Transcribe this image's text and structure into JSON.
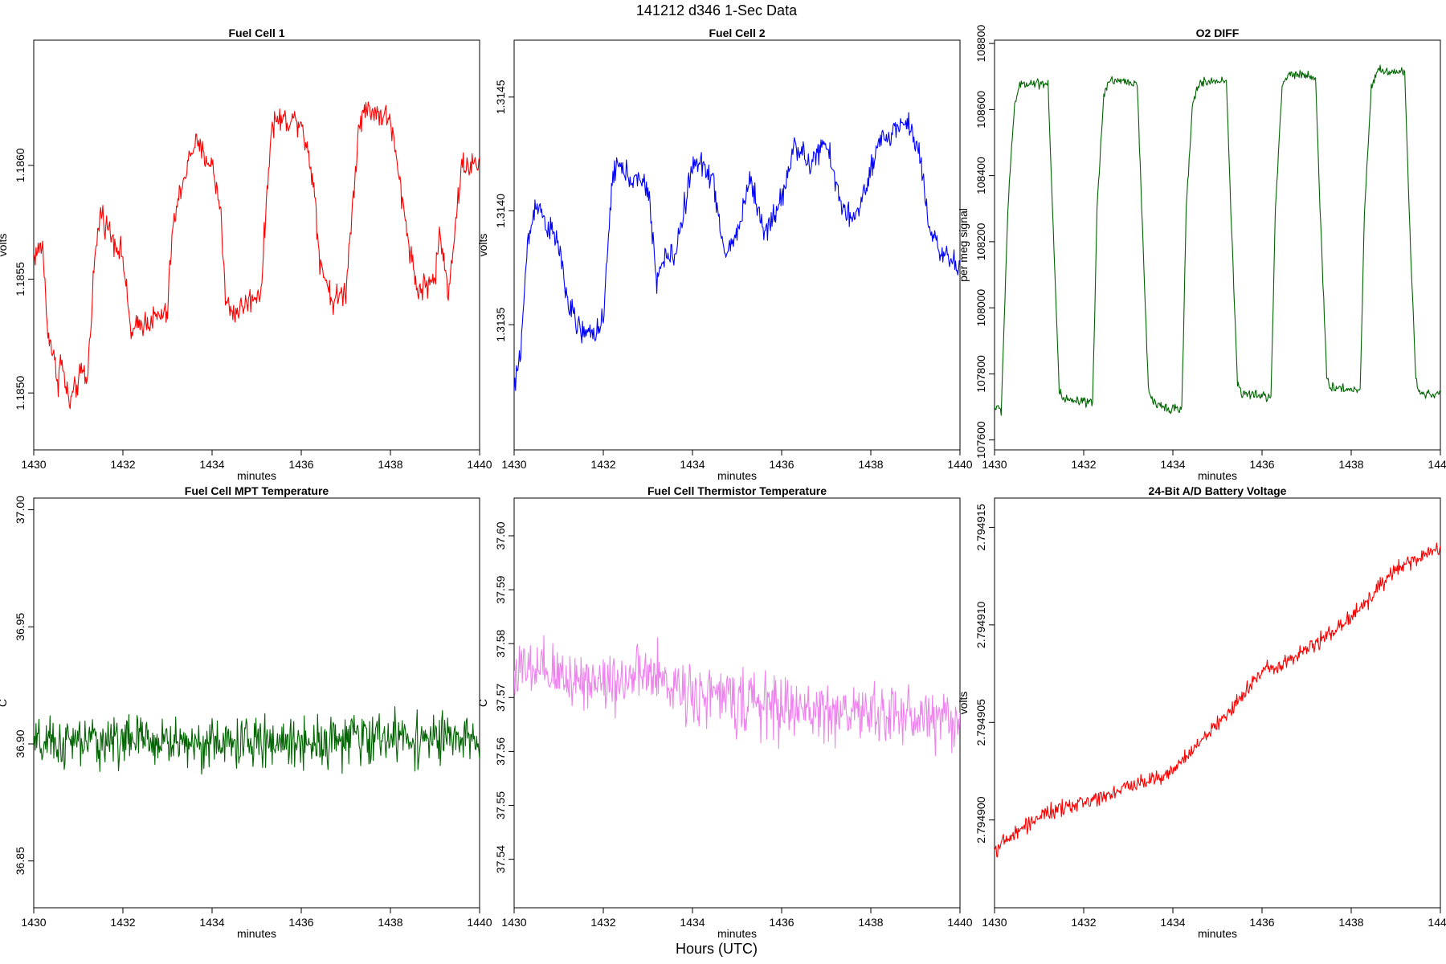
{
  "page": {
    "title": "141212   d346   1-Sec Data",
    "x_main_label": "Hours (UTC)"
  },
  "chart_data": [
    {
      "type": "line",
      "title": "Fuel Cell 1",
      "xlabel": "minutes",
      "ylabel": "volts",
      "xlim": [
        1430,
        1440
      ],
      "ylim": [
        1.18475,
        1.18655
      ],
      "xticks": [
        1430,
        1432,
        1434,
        1436,
        1438,
        1440
      ],
      "xtick_labels": [
        "1430",
        "1432",
        "1434",
        "1436",
        "1438",
        "1440"
      ],
      "yticks": [
        1.185,
        1.1855,
        1.186
      ],
      "ytick_labels": [
        "1.1850",
        "1.1855",
        "1.1860"
      ],
      "color": "#ff0000",
      "noise": 8.5e-05,
      "x": [
        1430.0,
        1430.2,
        1430.3,
        1430.55,
        1430.6,
        1430.8,
        1431.1,
        1431.2,
        1431.35,
        1431.5,
        1431.6,
        1432.0,
        1432.1,
        1432.2,
        1432.35,
        1433.0,
        1433.1,
        1433.3,
        1433.6,
        1434.0,
        1434.2,
        1434.3,
        1434.5,
        1435.1,
        1435.3,
        1435.4,
        1436.0,
        1436.3,
        1436.4,
        1436.7,
        1437.0,
        1437.3,
        1437.5,
        1438.0,
        1438.3,
        1438.6,
        1439.0,
        1439.1,
        1439.3,
        1439.6,
        1440.0
      ],
      "y": [
        1.1856,
        1.18565,
        1.1853,
        1.18505,
        1.18515,
        1.18495,
        1.1851,
        1.18505,
        1.18555,
        1.1858,
        1.18575,
        1.1856,
        1.1854,
        1.18525,
        1.1853,
        1.18535,
        1.1857,
        1.1859,
        1.1861,
        1.186,
        1.1858,
        1.1854,
        1.18535,
        1.18545,
        1.1861,
        1.1862,
        1.1862,
        1.1859,
        1.1856,
        1.1854,
        1.18545,
        1.1862,
        1.18625,
        1.1862,
        1.1858,
        1.18545,
        1.1855,
        1.1857,
        1.18545,
        1.186,
        1.186
      ]
    },
    {
      "type": "line",
      "title": "Fuel Cell 2",
      "xlabel": "minutes",
      "ylabel": "volts",
      "xlim": [
        1430,
        1440
      ],
      "ylim": [
        1.31295,
        1.31475
      ],
      "xticks": [
        1430,
        1432,
        1434,
        1436,
        1438,
        1440
      ],
      "xtick_labels": [
        "1430",
        "1432",
        "1434",
        "1436",
        "1438",
        "1440"
      ],
      "yticks": [
        1.3135,
        1.314,
        1.3145
      ],
      "ytick_labels": [
        "1.3135",
        "1.3140",
        "1.3145"
      ],
      "color": "#0000ff",
      "noise": 8.5e-05,
      "x": [
        1430.0,
        1430.15,
        1430.3,
        1430.5,
        1430.7,
        1431.0,
        1431.2,
        1431.4,
        1431.6,
        1432.0,
        1432.2,
        1432.3,
        1432.6,
        1433.0,
        1433.2,
        1433.4,
        1433.6,
        1434.0,
        1434.3,
        1434.5,
        1434.7,
        1435.0,
        1435.3,
        1435.6,
        1436.0,
        1436.3,
        1436.6,
        1437.0,
        1437.3,
        1437.6,
        1437.9,
        1438.2,
        1438.5,
        1438.8,
        1439.1,
        1439.3,
        1439.6,
        1440.0
      ],
      "y": [
        1.3132,
        1.3134,
        1.31385,
        1.31405,
        1.31395,
        1.31385,
        1.3136,
        1.3135,
        1.31345,
        1.3135,
        1.31415,
        1.3142,
        1.31415,
        1.3141,
        1.3137,
        1.3138,
        1.3138,
        1.3142,
        1.3142,
        1.3141,
        1.3138,
        1.3139,
        1.31415,
        1.3139,
        1.31405,
        1.3143,
        1.3142,
        1.3143,
        1.31405,
        1.31395,
        1.3141,
        1.3143,
        1.31435,
        1.3144,
        1.31425,
        1.31395,
        1.3138,
        1.31375
      ]
    },
    {
      "type": "line",
      "title": "O2 DIFF",
      "xlabel": "minutes",
      "ylabel": "per meg signal",
      "xlim": [
        1430,
        1440
      ],
      "ylim": [
        107570,
        108810
      ],
      "xticks": [
        1430,
        1432,
        1434,
        1436,
        1438,
        1440
      ],
      "xtick_labels": [
        "1430",
        "1432",
        "1434",
        "1436",
        "1438",
        "1440"
      ],
      "yticks": [
        107600,
        107800,
        108000,
        108200,
        108400,
        108600,
        108800
      ],
      "ytick_labels": [
        "107600",
        "107800",
        "108000",
        "108200",
        "108400",
        "108600",
        "108800"
      ],
      "color": "#006400",
      "noise": 22,
      "x": [
        1430.0,
        1430.15,
        1430.3,
        1430.45,
        1430.6,
        1431.2,
        1431.3,
        1431.45,
        1431.55,
        1432.2,
        1432.3,
        1432.45,
        1432.6,
        1433.2,
        1433.3,
        1433.45,
        1433.55,
        1434.2,
        1434.3,
        1434.45,
        1434.6,
        1435.2,
        1435.3,
        1435.45,
        1435.55,
        1436.2,
        1436.3,
        1436.45,
        1436.6,
        1437.2,
        1437.3,
        1437.45,
        1437.55,
        1438.2,
        1438.3,
        1438.45,
        1438.6,
        1439.2,
        1439.3,
        1439.45,
        1439.55,
        1440.0
      ],
      "y": [
        107700,
        107690,
        108300,
        108620,
        108680,
        108680,
        108300,
        107750,
        107720,
        107710,
        108300,
        108650,
        108690,
        108680,
        108300,
        107760,
        107710,
        107690,
        108300,
        108630,
        108680,
        108690,
        108300,
        107770,
        107740,
        107730,
        108300,
        108670,
        108710,
        108700,
        108300,
        107790,
        107760,
        107750,
        108300,
        108670,
        108720,
        108710,
        108300,
        107780,
        107740,
        107740
      ]
    },
    {
      "type": "line",
      "title": "Fuel Cell MPT Temperature",
      "xlabel": "minutes",
      "ylabel": "C",
      "xlim": [
        1430,
        1440
      ],
      "ylim": [
        36.83,
        37.005
      ],
      "xticks": [
        1430,
        1432,
        1434,
        1436,
        1438,
        1440
      ],
      "xtick_labels": [
        "1430",
        "1432",
        "1434",
        "1436",
        "1438",
        "1440"
      ],
      "yticks": [
        36.85,
        36.9,
        36.95,
        37.0
      ],
      "ytick_labels": [
        "36.85",
        "36.90",
        "36.95",
        "37.00"
      ],
      "color": "#006400",
      "noise": 0.016,
      "x": [
        1430.0,
        1432.0,
        1434.0,
        1436.0,
        1438.0,
        1440.0
      ],
      "y": [
        36.899,
        36.902,
        36.9,
        36.901,
        36.903,
        36.901
      ]
    },
    {
      "type": "line",
      "title": "Fuel Cell Thermistor Temperature",
      "xlabel": "minutes",
      "ylabel": "C",
      "xlim": [
        1430,
        1440
      ],
      "ylim": [
        37.531,
        37.607
      ],
      "xticks": [
        1430,
        1432,
        1434,
        1436,
        1438,
        1440
      ],
      "xtick_labels": [
        "1430",
        "1432",
        "1434",
        "1436",
        "1438",
        "1440"
      ],
      "yticks": [
        37.54,
        37.55,
        37.56,
        37.57,
        37.58,
        37.59,
        37.6
      ],
      "ytick_labels": [
        "37.54",
        "37.55",
        "37.56",
        "37.57",
        "37.58",
        "37.59",
        "37.60"
      ],
      "color": "#ee82ee",
      "noise": 0.0085,
      "x": [
        1430.0,
        1432.0,
        1433.0,
        1434.0,
        1436.0,
        1438.0,
        1440.0
      ],
      "y": [
        37.575,
        37.573,
        37.574,
        37.571,
        37.568,
        37.567,
        37.566
      ]
    },
    {
      "type": "line",
      "title": "24-Bit A/D Battery Voltage",
      "xlabel": "minutes",
      "ylabel": "volts",
      "xlim": [
        1430,
        1440
      ],
      "ylim": [
        2.7948955,
        2.7949165
      ],
      "xticks": [
        1430,
        1432,
        1434,
        1436,
        1438,
        1440
      ],
      "xtick_labels": [
        "1430",
        "1432",
        "1434",
        "1436",
        "1438",
        "1440"
      ],
      "yticks": [
        2.7949,
        2.794905,
        2.79491,
        2.794915
      ],
      "ytick_labels": [
        "2.794900",
        "2.794905",
        "2.794910",
        "2.794915"
      ],
      "color": "#ff0000",
      "noise": 6e-07,
      "x": [
        1430.0,
        1431.0,
        1432.0,
        1433.0,
        1434.0,
        1435.0,
        1436.0,
        1437.0,
        1438.0,
        1439.0,
        1440.0
      ],
      "y": [
        2.7948985,
        2.7949002,
        2.7949009,
        2.7949017,
        2.7949025,
        2.7949049,
        2.7949076,
        2.7949087,
        2.7949104,
        2.7949128,
        2.794914
      ]
    }
  ]
}
